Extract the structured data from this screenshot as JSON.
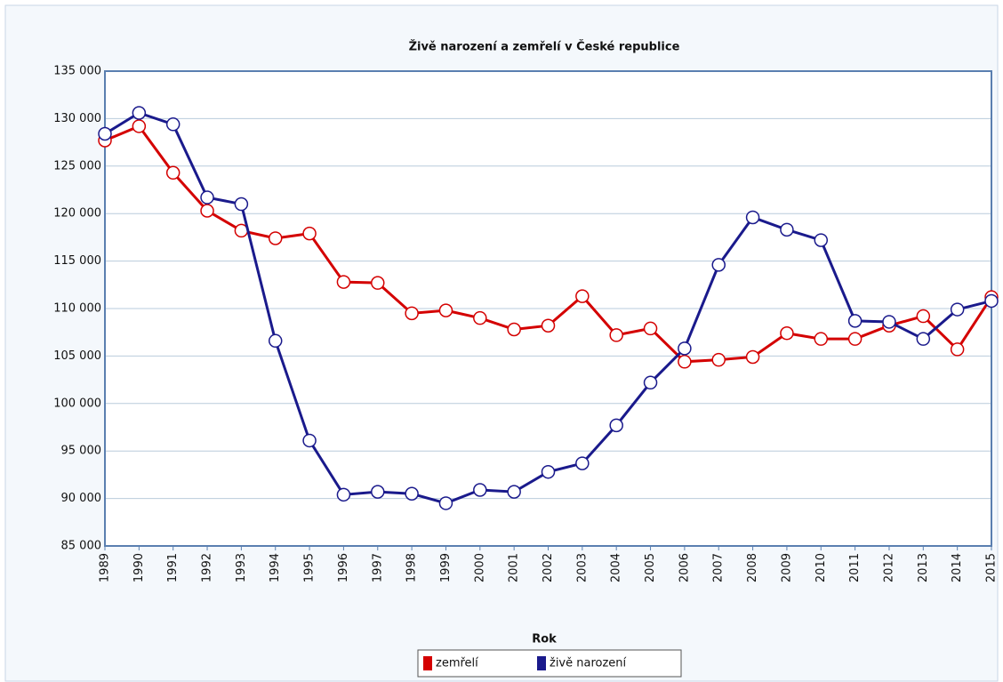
{
  "chart_data": {
    "type": "line",
    "title": "Živě narození a zemřelí v České republice",
    "x_label": "Rok",
    "categories": [
      "1989",
      "1990",
      "1991",
      "1992",
      "1993",
      "1994",
      "1995",
      "1996",
      "1997",
      "1998",
      "1999",
      "2000",
      "2001",
      "2002",
      "2003",
      "2004",
      "2005",
      "2006",
      "2007",
      "2008",
      "2009",
      "2010",
      "2011",
      "2012",
      "2013",
      "2014",
      "2015"
    ],
    "series": [
      {
        "name": "zemřelí",
        "color": "#d40000",
        "values": [
          127700,
          129200,
          124300,
          120300,
          118200,
          117400,
          117900,
          112800,
          112700,
          109500,
          109800,
          109000,
          107800,
          108200,
          111300,
          107200,
          107900,
          104400,
          104600,
          104900,
          107400,
          106800,
          106800,
          108200,
          109200,
          105700,
          111200
        ]
      },
      {
        "name": "živě narození",
        "color": "#1a1a8c",
        "values": [
          128400,
          130600,
          129400,
          121700,
          121000,
          106600,
          96100,
          90400,
          90700,
          90500,
          89500,
          90900,
          90700,
          92800,
          93700,
          97700,
          102200,
          105800,
          114600,
          119600,
          118300,
          117200,
          108700,
          108600,
          106800,
          109900,
          110800
        ]
      }
    ],
    "ylim": [
      85000,
      135000
    ],
    "yticks": [
      {
        "value": 85000,
        "label": "85 000"
      },
      {
        "value": 90000,
        "label": "90 000"
      },
      {
        "value": 95000,
        "label": "95 000"
      },
      {
        "value": 100000,
        "label": "100 000"
      },
      {
        "value": 105000,
        "label": "105 000"
      },
      {
        "value": 110000,
        "label": "110 000"
      },
      {
        "value": 115000,
        "label": "115 000"
      },
      {
        "value": 120000,
        "label": "120 000"
      },
      {
        "value": 125000,
        "label": "125 000"
      },
      {
        "value": 130000,
        "label": "130 000"
      },
      {
        "value": 135000,
        "label": "135 000"
      }
    ],
    "grid": true,
    "legend": "bottom"
  }
}
